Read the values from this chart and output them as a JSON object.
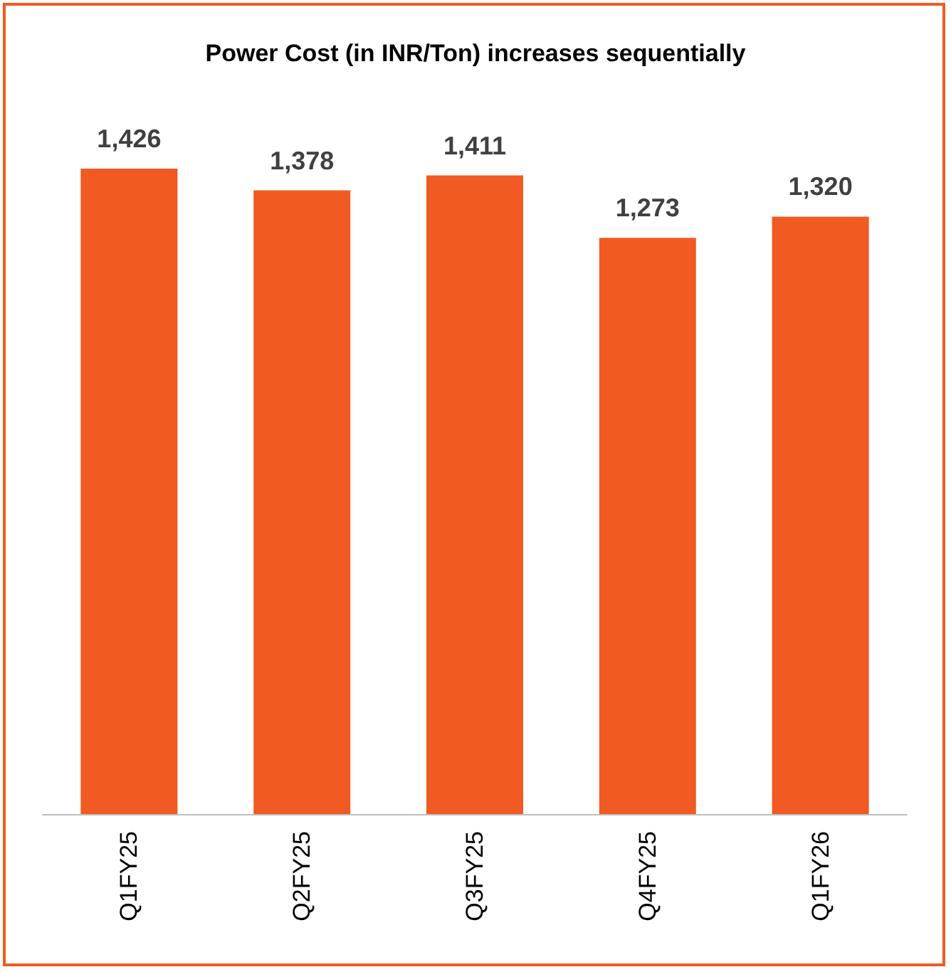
{
  "chart_data": {
    "type": "bar",
    "title": "Power Cost (in INR/Ton) increases sequentially",
    "categories": [
      "Q1FY25",
      "Q2FY25",
      "Q3FY25",
      "Q4FY25",
      "Q1FY26"
    ],
    "values": [
      1426,
      1378,
      1411,
      1273,
      1320
    ],
    "value_labels": [
      "1,426",
      "1,378",
      "1,411",
      "1,273",
      "1,320"
    ],
    "color": "#f15a22"
  }
}
